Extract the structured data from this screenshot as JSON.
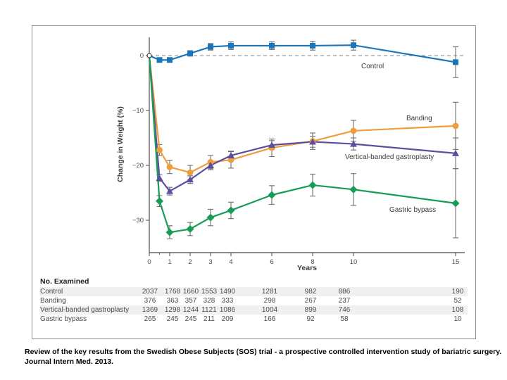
{
  "page": {
    "background": "#ffffff"
  },
  "figure": {
    "border_color": "#8f8f8f"
  },
  "chart_data": {
    "type": "line",
    "title": "",
    "xlabel": "Years",
    "ylabel": "Change in Weight (%)",
    "x": [
      0,
      0.5,
      1,
      2,
      3,
      4,
      6,
      8,
      10,
      15
    ],
    "xticks": [
      0,
      1,
      2,
      3,
      4,
      6,
      8,
      10,
      15
    ],
    "xtick_labels": [
      "0",
      "1",
      "2",
      "3",
      "4",
      "6",
      "8",
      "10",
      "15"
    ],
    "minor_xticks": [
      0.5
    ],
    "yticks": [
      0,
      -10,
      -20,
      -30
    ],
    "ytick_labels": [
      "0",
      "−10",
      "−20",
      "−30"
    ],
    "xlim": [
      0,
      15.5
    ],
    "ylim": [
      -36,
      4
    ],
    "zero_line": {
      "value": 0,
      "style": "dashed",
      "color": "#9a9a9a"
    },
    "error_bar_color": "#6e6e6e",
    "axis_color": "#666666",
    "legend_position": "inline-right",
    "series": [
      {
        "name": "Banding",
        "color": "#ee9d3d",
        "marker": "circle",
        "values": [
          0,
          -17.2,
          -20.3,
          -21.3,
          -19.4,
          -19.0,
          -16.8,
          -15.6,
          -13.7,
          -12.8
        ],
        "errors": [
          0,
          1.0,
          1.2,
          1.3,
          1.2,
          1.5,
          1.6,
          1.5,
          1.9,
          4.3
        ]
      },
      {
        "name": "Vertical-banded gastroplasty",
        "color": "#5c4e9e",
        "marker": "triangle",
        "values": [
          0,
          -22.3,
          -24.7,
          -22.6,
          -20.0,
          -18.2,
          -16.3,
          -15.7,
          -16.1,
          -17.8
        ],
        "errors": [
          0,
          0.6,
          0.7,
          0.7,
          0.8,
          0.8,
          0.8,
          1.0,
          1.1,
          2.8
        ]
      },
      {
        "name": "Gastric bypass",
        "color": "#169c56",
        "marker": "diamond",
        "values": [
          0,
          -26.5,
          -32.2,
          -31.6,
          -29.5,
          -28.2,
          -25.4,
          -23.6,
          -24.4,
          -26.9
        ],
        "errors": [
          0,
          1.0,
          1.2,
          1.2,
          1.5,
          1.5,
          1.7,
          2.0,
          2.9,
          6.3
        ]
      },
      {
        "name": "Control",
        "color": "#1b75bb",
        "marker": "square",
        "values": [
          0,
          -0.8,
          -0.8,
          0.4,
          1.6,
          1.8,
          1.8,
          1.8,
          1.9,
          -1.2
        ],
        "errors": [
          0,
          0.4,
          0.4,
          0.5,
          0.6,
          0.7,
          0.7,
          0.8,
          0.9,
          2.8
        ]
      }
    ]
  },
  "table": {
    "header": "No. Examined",
    "column_years": [
      0.5,
      1,
      2,
      3,
      4,
      6,
      8,
      10,
      15
    ],
    "stripe_color": "#f0f0f0",
    "rows": [
      {
        "label": "Control",
        "values": [
          2037,
          1768,
          1660,
          1553,
          1490,
          1281,
          982,
          886,
          190
        ]
      },
      {
        "label": "Banding",
        "values": [
          376,
          363,
          357,
          328,
          333,
          298,
          267,
          237,
          52
        ]
      },
      {
        "label": "Vertical-banded gastroplasty",
        "values": [
          1369,
          1298,
          1244,
          1121,
          1086,
          1004,
          899,
          746,
          108
        ]
      },
      {
        "label": "Gastric bypass",
        "values": [
          265,
          245,
          245,
          211,
          209,
          166,
          92,
          58,
          10
        ]
      }
    ]
  },
  "caption": "Review of the key results from the Swedish Obese Subjects (SOS) trial - a prospective controlled intervention study of bariatric surgery. Journal Intern Med. 2013."
}
